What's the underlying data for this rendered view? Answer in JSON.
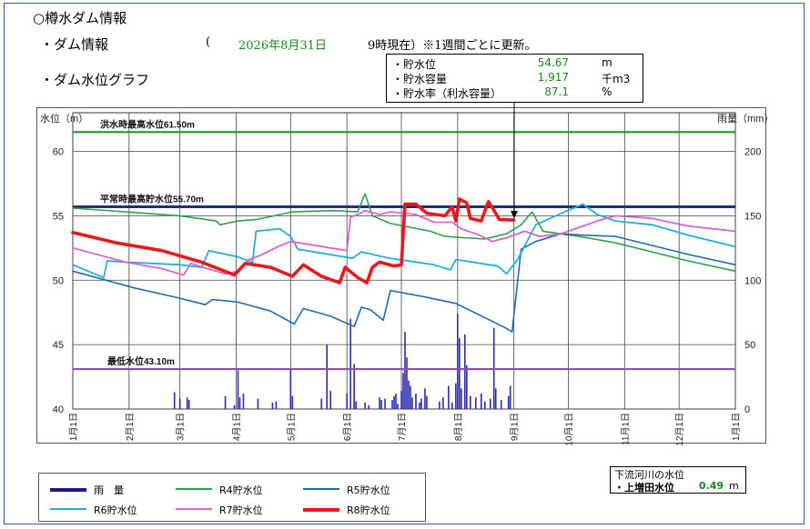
{
  "page": {
    "title": "○樽水ダム情報",
    "dam_info_label": "・ダム情報",
    "paren_open": "(",
    "date": "2026年8月31日",
    "time_note": "9時現在）※1週間ごとに更新。",
    "graph_label": "・ダム水位グラフ"
  },
  "current": {
    "rows": [
      {
        "label": "・貯水位",
        "value": "54.67",
        "unit": "m"
      },
      {
        "label": "・貯水容量",
        "value": "1,917",
        "unit": "千m3"
      },
      {
        "label": "・貯水率（利水容量）",
        "value": "87.1",
        "unit": "%"
      }
    ]
  },
  "river": {
    "title": "下流河川の水位",
    "label": "・上増田水位",
    "value": "0.49",
    "unit": "m"
  },
  "chart_data": {
    "type": "line",
    "y_left_label": "水位（m）",
    "y_right_label": "雨量（mm）",
    "y_left_range": [
      40,
      63
    ],
    "y_right_range": [
      0,
      230
    ],
    "y_left_ticks": [
      40,
      45,
      50,
      55,
      60
    ],
    "y_right_ticks": [
      0,
      50,
      100,
      150,
      200
    ],
    "x_range": [
      1,
      366
    ],
    "x_ticks": [
      {
        "day": 1,
        "label": "1月1日"
      },
      {
        "day": 32,
        "label": "2月1日"
      },
      {
        "day": 60,
        "label": "3月1日"
      },
      {
        "day": 91,
        "label": "4月1日"
      },
      {
        "day": 121,
        "label": "5月1日"
      },
      {
        "day": 152,
        "label": "6月1日"
      },
      {
        "day": 182,
        "label": "7月1日"
      },
      {
        "day": 213,
        "label": "8月1日"
      },
      {
        "day": 244,
        "label": "9月1日"
      },
      {
        "day": 274,
        "label": "10月1日"
      },
      {
        "day": 305,
        "label": "11月1日"
      },
      {
        "day": 335,
        "label": "12月1日"
      },
      {
        "day": 366,
        "label": "1月1日"
      }
    ],
    "grid": true,
    "reference_lines": [
      {
        "label": "洪水時最高水位61.50m",
        "value": 61.5,
        "color": "#2e9a35"
      },
      {
        "label": "平常時最高貯水位55.70m",
        "value": 55.7,
        "color": "#1f2f7a"
      },
      {
        "label": "最低水位43.10m",
        "value": 43.1,
        "color": "#8a4fb0"
      }
    ],
    "series": [
      {
        "name": "R4貯水位",
        "color": "#2ea04a",
        "width": 1.6,
        "points": [
          [
            1,
            55.6
          ],
          [
            60,
            55.0
          ],
          [
            80,
            54.6
          ],
          [
            82,
            54.3
          ],
          [
            92,
            54.6
          ],
          [
            102,
            54.7
          ],
          [
            122,
            55.3
          ],
          [
            145,
            55.4
          ],
          [
            158,
            55.3
          ],
          [
            162,
            56.7
          ],
          [
            166,
            55.0
          ],
          [
            176,
            54.4
          ],
          [
            198,
            53.8
          ],
          [
            206,
            53.4
          ],
          [
            216,
            53.3
          ],
          [
            228,
            53.2
          ],
          [
            240,
            53.6
          ],
          [
            248,
            54.3
          ],
          [
            254,
            55.3
          ],
          [
            260,
            53.8
          ],
          [
            280,
            53.4
          ],
          [
            300,
            52.9
          ],
          [
            320,
            52.2
          ],
          [
            340,
            51.5
          ],
          [
            366,
            50.7
          ]
        ]
      },
      {
        "name": "R5貯水位",
        "color": "#1f6bb0",
        "width": 1.6,
        "points": [
          [
            1,
            50.7
          ],
          [
            35,
            49.4
          ],
          [
            60,
            48.6
          ],
          [
            74,
            48.1
          ],
          [
            78,
            48.5
          ],
          [
            92,
            48.3
          ],
          [
            110,
            47.6
          ],
          [
            123,
            46.6
          ],
          [
            128,
            47.8
          ],
          [
            143,
            47.2
          ],
          [
            156,
            46.4
          ],
          [
            160,
            47.9
          ],
          [
            165,
            47.7
          ],
          [
            172,
            46.9
          ],
          [
            176,
            49.2
          ],
          [
            195,
            48.7
          ],
          [
            212,
            48.2
          ],
          [
            238,
            46.4
          ],
          [
            243,
            46.0
          ],
          [
            248,
            52.4
          ],
          [
            256,
            53.0
          ],
          [
            270,
            53.6
          ],
          [
            282,
            53.5
          ],
          [
            300,
            53.4
          ],
          [
            320,
            52.7
          ],
          [
            340,
            52.0
          ],
          [
            366,
            51.2
          ]
        ]
      },
      {
        "name": "R6貯水位",
        "color": "#22aee0",
        "width": 1.8,
        "points": [
          [
            1,
            51.2
          ],
          [
            18,
            50.2
          ],
          [
            20,
            51.5
          ],
          [
            30,
            51.4
          ],
          [
            45,
            51.3
          ],
          [
            60,
            51.2
          ],
          [
            72,
            51.0
          ],
          [
            76,
            52.3
          ],
          [
            92,
            51.8
          ],
          [
            100,
            51.4
          ],
          [
            102,
            53.8
          ],
          [
            115,
            54.0
          ],
          [
            121,
            53.4
          ],
          [
            125,
            52.4
          ],
          [
            155,
            51.7
          ],
          [
            160,
            52.2
          ],
          [
            176,
            51.7
          ],
          [
            200,
            51.2
          ],
          [
            209,
            50.8
          ],
          [
            212,
            51.6
          ],
          [
            235,
            51.1
          ],
          [
            240,
            50.5
          ],
          [
            246,
            51.6
          ],
          [
            256,
            54.3
          ],
          [
            272,
            55.3
          ],
          [
            282,
            55.9
          ],
          [
            290,
            55.1
          ],
          [
            300,
            54.6
          ],
          [
            320,
            54.3
          ],
          [
            340,
            53.5
          ],
          [
            366,
            52.6
          ]
        ]
      },
      {
        "name": "R7貯水位",
        "color": "#d864cc",
        "width": 1.8,
        "points": [
          [
            1,
            52.5
          ],
          [
            30,
            51.4
          ],
          [
            50,
            50.9
          ],
          [
            62,
            50.4
          ],
          [
            66,
            51.3
          ],
          [
            75,
            50.9
          ],
          [
            85,
            50.5
          ],
          [
            92,
            50.7
          ],
          [
            98,
            51.6
          ],
          [
            104,
            51.9
          ],
          [
            114,
            52.6
          ],
          [
            121,
            53.0
          ],
          [
            152,
            52.3
          ],
          [
            154,
            54.9
          ],
          [
            158,
            55.1
          ],
          [
            162,
            55.4
          ],
          [
            170,
            55.1
          ],
          [
            176,
            55.3
          ],
          [
            190,
            55.1
          ],
          [
            200,
            54.5
          ],
          [
            210,
            54.5
          ],
          [
            215,
            54.0
          ],
          [
            225,
            53.5
          ],
          [
            232,
            53.0
          ],
          [
            240,
            53.3
          ],
          [
            250,
            53.8
          ],
          [
            258,
            53.4
          ],
          [
            270,
            53.6
          ],
          [
            290,
            54.6
          ],
          [
            300,
            55.0
          ],
          [
            320,
            54.8
          ],
          [
            340,
            54.2
          ],
          [
            366,
            53.8
          ]
        ]
      },
      {
        "name": "R8貯水位",
        "color": "#e8191e",
        "width": 3.6,
        "points": [
          [
            1,
            53.7
          ],
          [
            25,
            52.9
          ],
          [
            50,
            52.3
          ],
          [
            72,
            51.4
          ],
          [
            90,
            50.4
          ],
          [
            96,
            51.3
          ],
          [
            110,
            51.0
          ],
          [
            122,
            50.3
          ],
          [
            128,
            51.2
          ],
          [
            138,
            50.3
          ],
          [
            148,
            49.8
          ],
          [
            151,
            51.0
          ],
          [
            158,
            50.2
          ],
          [
            163,
            49.8
          ],
          [
            166,
            51.0
          ],
          [
            170,
            51.4
          ],
          [
            178,
            51.1
          ],
          [
            182,
            51.2
          ],
          [
            184,
            55.9
          ],
          [
            190,
            55.9
          ],
          [
            196,
            55.2
          ],
          [
            206,
            55.0
          ],
          [
            210,
            55.7
          ],
          [
            212,
            54.6
          ],
          [
            214,
            56.3
          ],
          [
            218,
            56.0
          ],
          [
            220,
            54.8
          ],
          [
            226,
            54.6
          ],
          [
            230,
            56.1
          ],
          [
            234,
            55.2
          ],
          [
            236,
            54.7
          ],
          [
            244,
            54.67
          ]
        ]
      }
    ],
    "rainfall_mm": [
      {
        "day": 57,
        "value": 13
      },
      {
        "day": 60,
        "value": 8
      },
      {
        "day": 64,
        "value": 9
      },
      {
        "day": 65,
        "value": 7
      },
      {
        "day": 85,
        "value": 10
      },
      {
        "day": 90,
        "value": 3
      },
      {
        "day": 92,
        "value": 30
      },
      {
        "day": 93,
        "value": 9
      },
      {
        "day": 95,
        "value": 12
      },
      {
        "day": 103,
        "value": 8
      },
      {
        "day": 111,
        "value": 5
      },
      {
        "day": 113,
        "value": 6
      },
      {
        "day": 121,
        "value": 31
      },
      {
        "day": 122,
        "value": 10
      },
      {
        "day": 138,
        "value": 8
      },
      {
        "day": 141,
        "value": 50
      },
      {
        "day": 143,
        "value": 14
      },
      {
        "day": 152,
        "value": 12
      },
      {
        "day": 154,
        "value": 70
      },
      {
        "day": 156,
        "value": 35
      },
      {
        "day": 157,
        "value": 6
      },
      {
        "day": 162,
        "value": 5
      },
      {
        "day": 164,
        "value": 3
      },
      {
        "day": 170,
        "value": 9
      },
      {
        "day": 171,
        "value": 7
      },
      {
        "day": 173,
        "value": 8
      },
      {
        "day": 177,
        "value": 7
      },
      {
        "day": 178,
        "value": 10
      },
      {
        "day": 179,
        "value": 12
      },
      {
        "day": 180,
        "value": 4
      },
      {
        "day": 182,
        "value": 14
      },
      {
        "day": 183,
        "value": 28
      },
      {
        "day": 184,
        "value": 60
      },
      {
        "day": 185,
        "value": 40
      },
      {
        "day": 186,
        "value": 22
      },
      {
        "day": 187,
        "value": 18
      },
      {
        "day": 188,
        "value": 9
      },
      {
        "day": 190,
        "value": 12
      },
      {
        "day": 192,
        "value": 5
      },
      {
        "day": 193,
        "value": 8
      },
      {
        "day": 195,
        "value": 16
      },
      {
        "day": 196,
        "value": 10
      },
      {
        "day": 203,
        "value": 6
      },
      {
        "day": 205,
        "value": 9
      },
      {
        "day": 208,
        "value": 18
      },
      {
        "day": 210,
        "value": 5
      },
      {
        "day": 212,
        "value": 20
      },
      {
        "day": 213,
        "value": 74
      },
      {
        "day": 214,
        "value": 55
      },
      {
        "day": 215,
        "value": 16
      },
      {
        "day": 217,
        "value": 58
      },
      {
        "day": 218,
        "value": 34
      },
      {
        "day": 220,
        "value": 10
      },
      {
        "day": 223,
        "value": 9
      },
      {
        "day": 226,
        "value": 12
      },
      {
        "day": 228,
        "value": 6
      },
      {
        "day": 231,
        "value": 8
      },
      {
        "day": 233,
        "value": 63
      },
      {
        "day": 234,
        "value": 16
      },
      {
        "day": 237,
        "value": 7
      },
      {
        "day": 241,
        "value": 10
      },
      {
        "day": 242,
        "value": 18
      }
    ],
    "legend": [
      {
        "label": "雨　量",
        "color": "#1a1a8a",
        "width": 4
      },
      {
        "label": "R4貯水位",
        "color": "#2ea04a",
        "width": 2
      },
      {
        "label": "R5貯水位",
        "color": "#1f6bb0",
        "width": 2
      },
      {
        "label": "R6貯水位",
        "color": "#22aee0",
        "width": 2
      },
      {
        "label": "R7貯水位",
        "color": "#d864cc",
        "width": 2
      },
      {
        "label": "R8貯水位",
        "color": "#e8191e",
        "width": 4
      }
    ]
  }
}
